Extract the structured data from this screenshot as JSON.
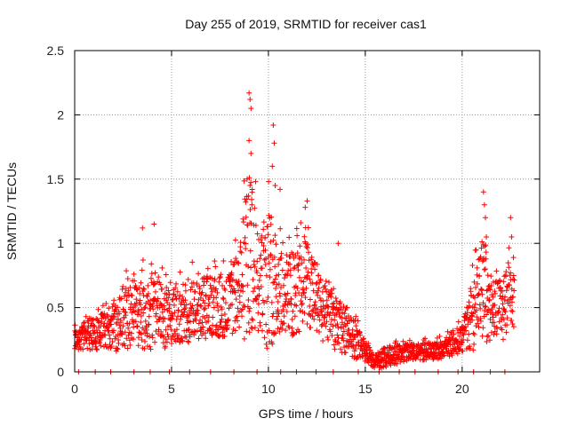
{
  "chart_data": {
    "type": "scatter",
    "title": "Day 255 of 2019, SRMTID for receiver cas1",
    "xlabel": "GPS time / hours",
    "ylabel": "SRMTID / TECUs",
    "xlim": [
      0,
      24
    ],
    "ylim": [
      0,
      2.5
    ],
    "xticks": [
      0,
      5,
      10,
      15,
      20
    ],
    "yticks": [
      0,
      0.5,
      1,
      1.5,
      2,
      2.5
    ],
    "ytick_labels": [
      "0",
      "0.5",
      "1",
      "1.5",
      "2",
      "2.5"
    ],
    "grid": true,
    "marker": "+",
    "color": "#ff0000",
    "envelope": [
      {
        "x": 0.0,
        "base": 0.25,
        "spread": 0.15
      },
      {
        "x": 1.0,
        "base": 0.28,
        "spread": 0.25
      },
      {
        "x": 2.0,
        "base": 0.3,
        "spread": 0.3
      },
      {
        "x": 2.5,
        "base": 0.4,
        "spread": 0.45
      },
      {
        "x": 3.0,
        "base": 0.38,
        "spread": 0.45
      },
      {
        "x": 3.5,
        "base": 0.42,
        "spread": 0.5
      },
      {
        "x": 4.0,
        "base": 0.4,
        "spread": 0.55
      },
      {
        "x": 5.0,
        "base": 0.4,
        "spread": 0.4
      },
      {
        "x": 6.0,
        "base": 0.45,
        "spread": 0.45
      },
      {
        "x": 7.0,
        "base": 0.48,
        "spread": 0.45
      },
      {
        "x": 8.0,
        "base": 0.5,
        "spread": 0.45
      },
      {
        "x": 8.5,
        "base": 0.6,
        "spread": 0.6
      },
      {
        "x": 9.0,
        "base": 0.8,
        "spread": 1.3
      },
      {
        "x": 9.5,
        "base": 0.65,
        "spread": 0.7
      },
      {
        "x": 10.0,
        "base": 0.65,
        "spread": 1.0
      },
      {
        "x": 10.5,
        "base": 0.65,
        "spread": 0.7
      },
      {
        "x": 11.0,
        "base": 0.55,
        "spread": 0.6
      },
      {
        "x": 12.0,
        "base": 0.65,
        "spread": 0.65
      },
      {
        "x": 12.5,
        "base": 0.5,
        "spread": 0.5
      },
      {
        "x": 13.0,
        "base": 0.4,
        "spread": 0.4
      },
      {
        "x": 14.0,
        "base": 0.3,
        "spread": 0.35
      },
      {
        "x": 15.0,
        "base": 0.15,
        "spread": 0.15
      },
      {
        "x": 15.5,
        "base": 0.07,
        "spread": 0.08
      },
      {
        "x": 16.0,
        "base": 0.1,
        "spread": 0.15
      },
      {
        "x": 17.0,
        "base": 0.14,
        "spread": 0.12
      },
      {
        "x": 18.0,
        "base": 0.15,
        "spread": 0.12
      },
      {
        "x": 19.0,
        "base": 0.17,
        "spread": 0.14
      },
      {
        "x": 20.0,
        "base": 0.25,
        "spread": 0.2
      },
      {
        "x": 20.5,
        "base": 0.4,
        "spread": 0.5
      },
      {
        "x": 21.0,
        "base": 0.55,
        "spread": 0.7
      },
      {
        "x": 21.5,
        "base": 0.45,
        "spread": 0.4
      },
      {
        "x": 22.0,
        "base": 0.45,
        "spread": 0.45
      },
      {
        "x": 22.7,
        "base": 0.6,
        "spread": 0.5
      }
    ],
    "extremes": [
      {
        "x": 9.0,
        "y": 2.17
      },
      {
        "x": 9.05,
        "y": 2.12
      },
      {
        "x": 9.1,
        "y": 2.05
      },
      {
        "x": 9.0,
        "y": 1.8
      },
      {
        "x": 9.1,
        "y": 1.7
      },
      {
        "x": 8.9,
        "y": 1.5
      },
      {
        "x": 9.05,
        "y": 1.45
      },
      {
        "x": 9.15,
        "y": 1.3
      },
      {
        "x": 10.25,
        "y": 1.92
      },
      {
        "x": 10.3,
        "y": 1.78
      },
      {
        "x": 10.2,
        "y": 1.6
      },
      {
        "x": 10.35,
        "y": 1.45
      },
      {
        "x": 10.6,
        "y": 1.42
      },
      {
        "x": 12.0,
        "y": 1.33
      },
      {
        "x": 11.9,
        "y": 1.28
      },
      {
        "x": 3.5,
        "y": 1.12
      },
      {
        "x": 4.1,
        "y": 1.15
      },
      {
        "x": 13.6,
        "y": 1.0
      },
      {
        "x": 21.1,
        "y": 1.4
      },
      {
        "x": 21.15,
        "y": 1.3
      },
      {
        "x": 21.2,
        "y": 1.2
      },
      {
        "x": 21.25,
        "y": 1.05
      },
      {
        "x": 22.5,
        "y": 1.2
      },
      {
        "x": 22.55,
        "y": 1.05
      }
    ]
  }
}
